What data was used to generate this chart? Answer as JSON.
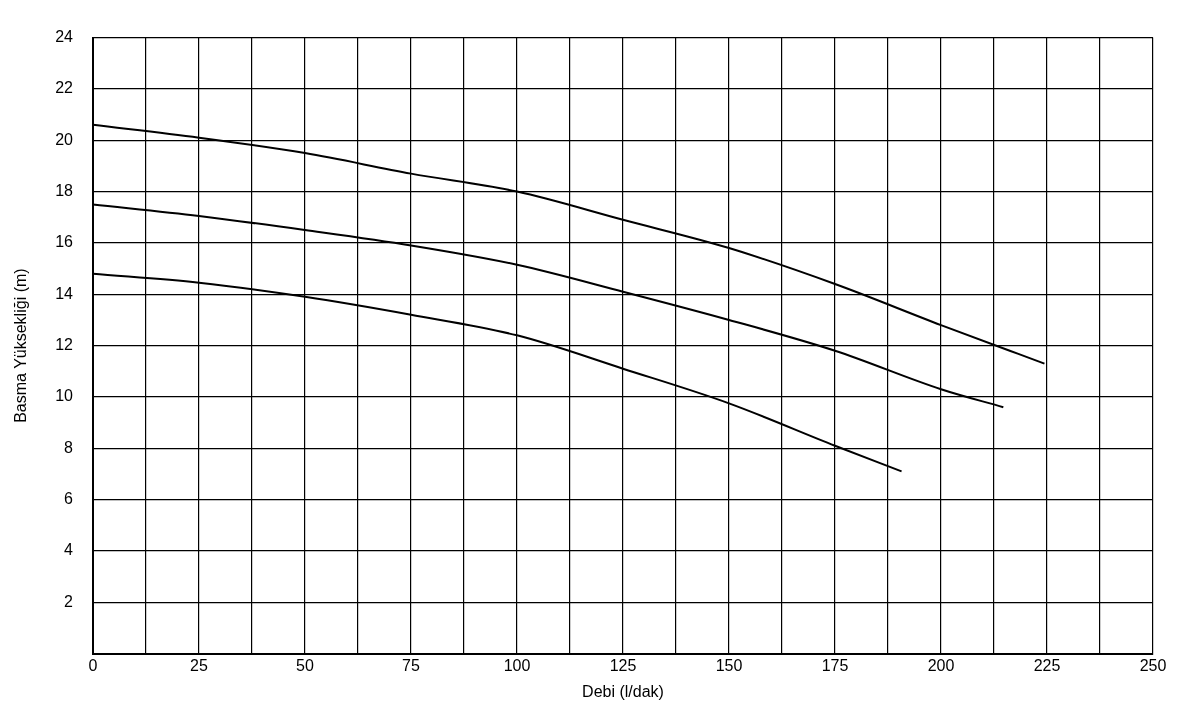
{
  "chart_data": {
    "type": "line",
    "xlabel": "Debi (l/dak)",
    "ylabel": "Basma Yüksekliği (m)",
    "xlim": [
      0,
      250
    ],
    "ylim": [
      0,
      24
    ],
    "xticks": [
      0,
      {
        "value": 12.5,
        "label": null
      },
      25,
      {
        "value": 37.5,
        "label": null
      },
      50,
      {
        "value": 62.5,
        "label": null
      },
      75,
      {
        "value": 87.5,
        "label": null
      },
      100,
      {
        "value": 112.5,
        "label": null
      },
      125,
      {
        "value": 137.5,
        "label": null
      },
      150,
      {
        "value": 162.5,
        "label": null
      },
      175,
      {
        "value": 187.5,
        "label": null
      },
      200,
      {
        "value": 212.5,
        "label": null
      },
      225,
      {
        "value": 237.5,
        "label": null
      },
      250
    ],
    "yticks": [
      {
        "value": 0,
        "label": null
      },
      2,
      4,
      6,
      8,
      10,
      12,
      14,
      16,
      18,
      20,
      22,
      24
    ],
    "grid": true,
    "legend": false,
    "marker": "none",
    "line_style": "solid",
    "series": [
      {
        "color": "#000000",
        "x": [
          0,
          25,
          50,
          75,
          100,
          125,
          150,
          175,
          200,
          224.4
        ],
        "values": [
          20.6,
          20.1,
          19.5,
          18.7,
          18.0,
          16.9,
          15.8,
          14.4,
          12.8,
          11.3
        ]
      },
      {
        "color": "#000000",
        "x": [
          0,
          25,
          50,
          75,
          100,
          125,
          150,
          175,
          200,
          214.7
        ],
        "values": [
          17.5,
          17.05,
          16.5,
          15.9,
          15.15,
          14.1,
          13.0,
          11.8,
          10.3,
          9.6
        ]
      },
      {
        "color": "#000000",
        "x": [
          0,
          25,
          50,
          75,
          100,
          125,
          150,
          175,
          190.7
        ],
        "values": [
          14.8,
          14.45,
          13.9,
          13.2,
          12.4,
          11.1,
          9.75,
          8.1,
          7.1
        ]
      }
    ]
  }
}
